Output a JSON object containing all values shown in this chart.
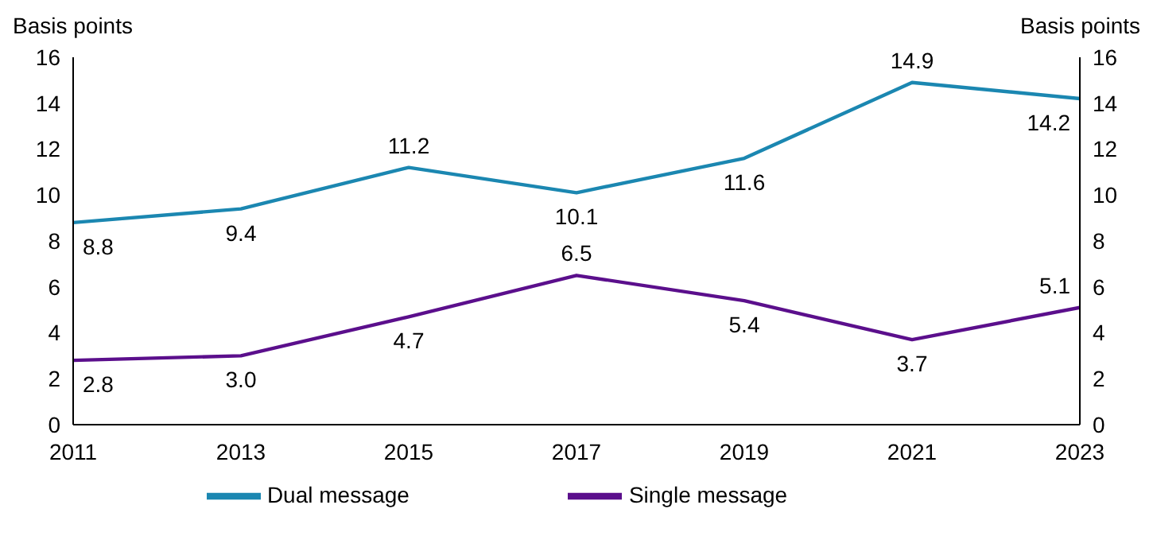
{
  "chart_data": {
    "type": "line",
    "ylabel": "Basis points",
    "y2label": "Basis points",
    "x": [
      2011,
      2013,
      2015,
      2017,
      2019,
      2021,
      2023
    ],
    "xlim": [
      2011,
      2023
    ],
    "xticks": [
      2011,
      2013,
      2015,
      2017,
      2019,
      2021,
      2023
    ],
    "ylim": [
      0,
      16
    ],
    "yticks": [
      0,
      2,
      4,
      6,
      8,
      10,
      12,
      14,
      16
    ],
    "y2lim": [
      0,
      16
    ],
    "y2ticks": [
      0,
      2,
      4,
      6,
      8,
      10,
      12,
      14,
      16
    ],
    "series": [
      {
        "name": "Dual message",
        "color": "#1b87b1",
        "values": [
          8.8,
          9.4,
          11.2,
          10.1,
          11.6,
          14.9,
          14.2
        ],
        "value_labels": [
          "8.8",
          "9.4",
          "11.2",
          "10.1",
          "11.6",
          "14.9",
          "14.2"
        ]
      },
      {
        "name": "Single message",
        "color": "#5b0f8c",
        "values": [
          2.8,
          3.0,
          4.7,
          6.5,
          5.4,
          3.7,
          5.1
        ],
        "value_labels": [
          "2.8",
          "3.0",
          "4.7",
          "6.5",
          "5.4",
          "3.7",
          "5.1"
        ]
      }
    ],
    "grid": false,
    "legend": "bottom",
    "marker": "none",
    "line_style": "solid"
  }
}
